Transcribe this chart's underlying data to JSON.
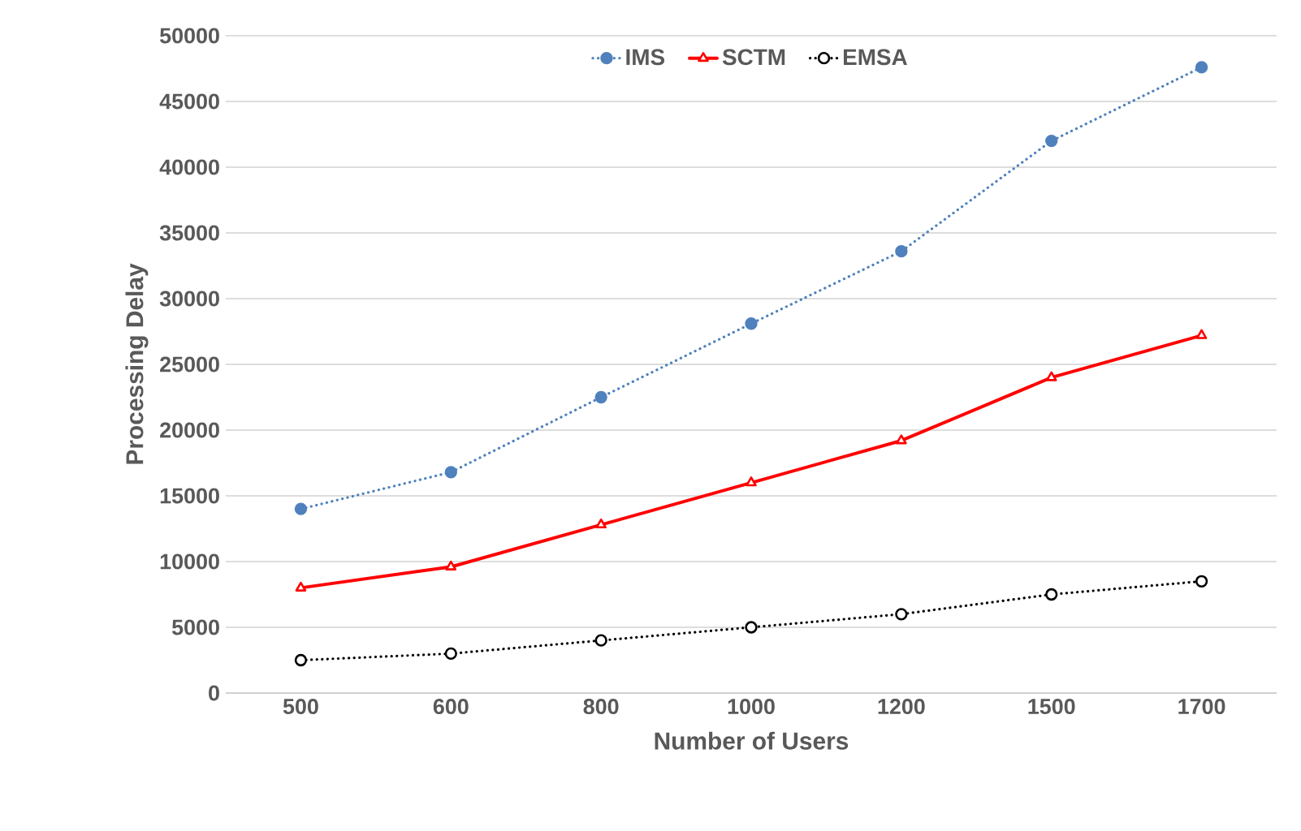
{
  "chart_data": {
    "type": "line",
    "xlabel": "Number of Users",
    "ylabel": "Processing Delay",
    "categories": [
      "500",
      "600",
      "800",
      "1000",
      "1200",
      "1500",
      "1700"
    ],
    "series": [
      {
        "name": "IMS",
        "color": "#4f81bd",
        "marker": "circle",
        "line_style": "dotted",
        "values": [
          14000,
          16800,
          22500,
          28100,
          33600,
          42000,
          47600
        ]
      },
      {
        "name": "SCTM",
        "color": "#ff0000",
        "marker": "triangle",
        "line_style": "solid",
        "values": [
          8000,
          9600,
          12800,
          16000,
          19200,
          24000,
          27200
        ]
      },
      {
        "name": "EMSA",
        "color": "#000000",
        "marker": "circle",
        "line_style": "dotted",
        "values": [
          2500,
          3000,
          4000,
          5000,
          6000,
          7500,
          8500
        ]
      }
    ],
    "ylim": [
      0,
      50000
    ],
    "yticks": [
      0,
      5000,
      10000,
      15000,
      20000,
      25000,
      30000,
      35000,
      40000,
      45000,
      50000
    ],
    "grid": "y",
    "legend": "top"
  }
}
